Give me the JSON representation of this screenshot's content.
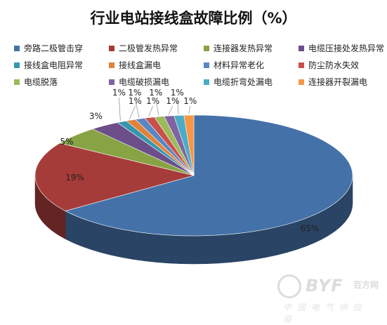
{
  "chart_data": {
    "type": "pie",
    "title": "行业电站接线盒故障比例（%）",
    "legend_placement": "top",
    "slices": [
      {
        "name": "旁路二极管击穿",
        "value": 65,
        "label": "65%",
        "color": "#4472A8"
      },
      {
        "name": "二极管发热异常",
        "value": 19,
        "label": "19%",
        "color": "#A63C3A"
      },
      {
        "name": "连接器发热异常",
        "value": 5,
        "label": "5%",
        "color": "#87A343"
      },
      {
        "name": "电缆压接处发热异常",
        "value": 3,
        "label": "3%",
        "color": "#6B4E8A"
      },
      {
        "name": "接线盒电阻异常",
        "value": 1,
        "label": "1%",
        "color": "#3796AD"
      },
      {
        "name": "接线盒漏电",
        "value": 1,
        "label": "1%",
        "color": "#E1823A"
      },
      {
        "name": "材料异常老化",
        "value": 1,
        "label": "1%",
        "color": "#5B86C5"
      },
      {
        "name": "防尘防水失效",
        "value": 1,
        "label": "1%",
        "color": "#C9504C"
      },
      {
        "name": "电缆脱落",
        "value": 1,
        "label": "1%",
        "color": "#9BBB59"
      },
      {
        "name": "电缆破损漏电",
        "value": 1,
        "label": "1%",
        "color": "#8064A2"
      },
      {
        "name": "电缆折弯处漏电",
        "value": 1,
        "label": "1%",
        "color": "#4BACC6"
      },
      {
        "name": "连接器开裂漏电",
        "value": 1,
        "label": "1%",
        "color": "#F79646"
      }
    ]
  },
  "watermark": {
    "brand": "BYF",
    "brand_cn": "百方网",
    "subtitle": "中国电气供应商"
  }
}
